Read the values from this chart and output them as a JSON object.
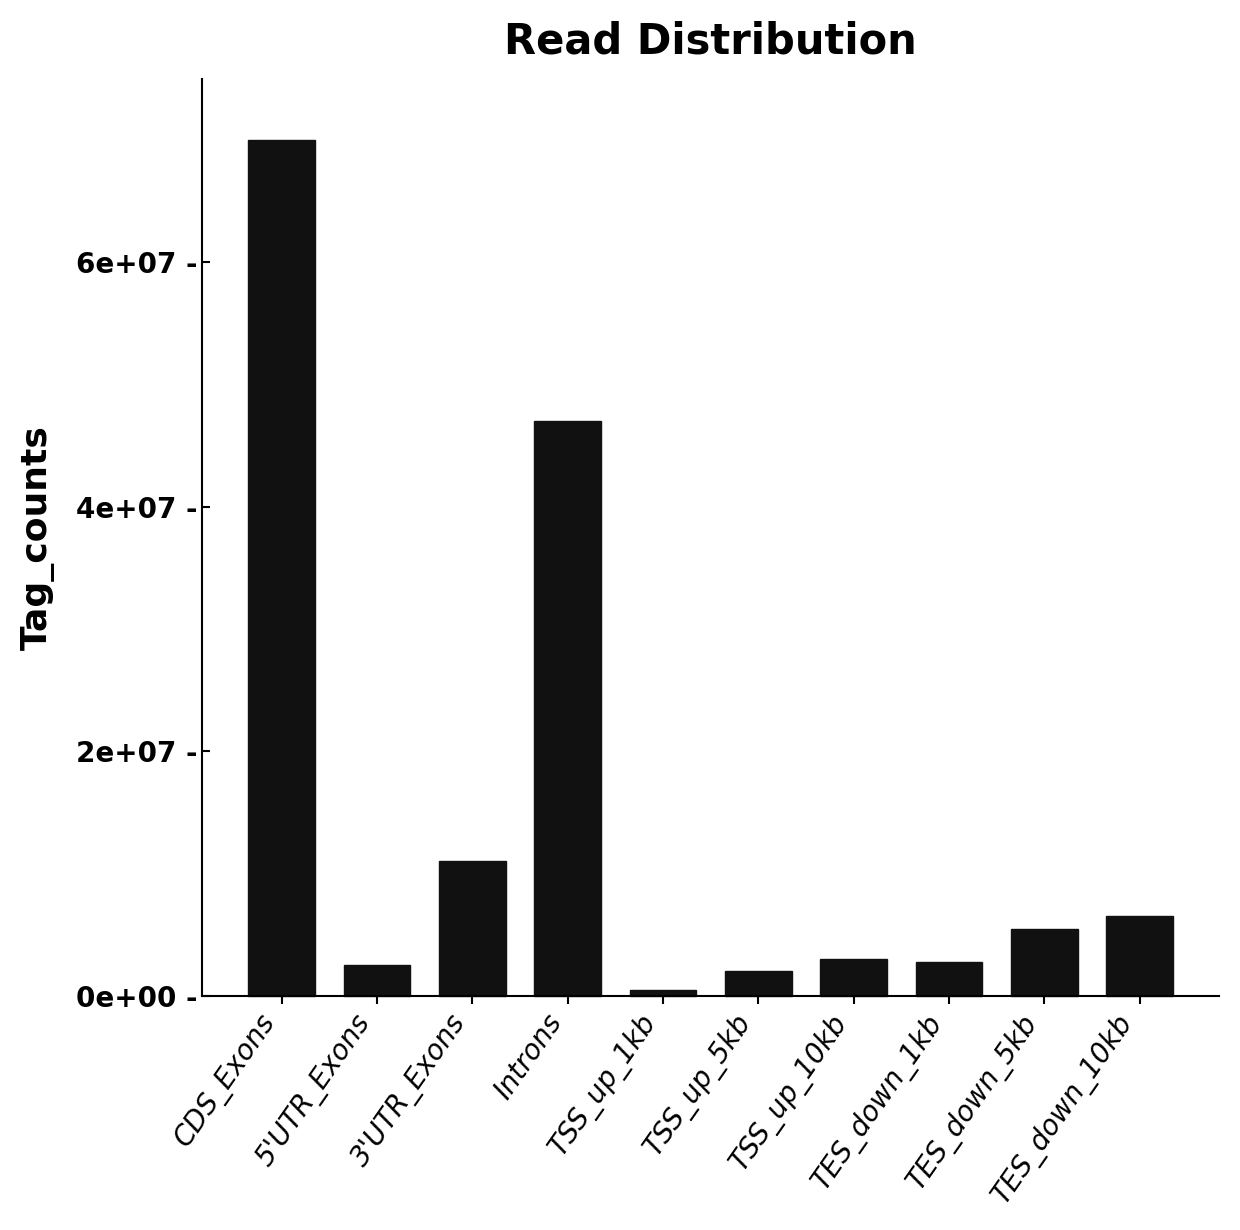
{
  "categories": [
    "CDS_Exons",
    "5'UTR_Exons",
    "3'UTR_Exons",
    "Introns",
    "TSS_up_1kb",
    "TSS_up_5kb",
    "TSS_up_10kb",
    "TES_down_1kb",
    "TES_down_5kb",
    "TES_down_10kb"
  ],
  "values": [
    70000000,
    2500000,
    11000000,
    47000000,
    500000,
    2000000,
    3000000,
    2800000,
    5500000,
    6500000
  ],
  "bar_color": "#111111",
  "title": "Read Distribution",
  "ylabel": "Tag_counts",
  "ylim": [
    0,
    75000000
  ],
  "yticks": [
    0,
    20000000,
    40000000,
    60000000
  ],
  "ytick_labels": [
    "0e+00 -",
    "2e+07 -",
    "4e+07 -",
    "6e+07 -"
  ],
  "title_fontsize": 30,
  "ylabel_fontsize": 26,
  "tick_fontsize": 20,
  "xtick_fontsize": 20,
  "background_color": "#ffffff",
  "bar_width": 0.7,
  "xrotation": 55
}
